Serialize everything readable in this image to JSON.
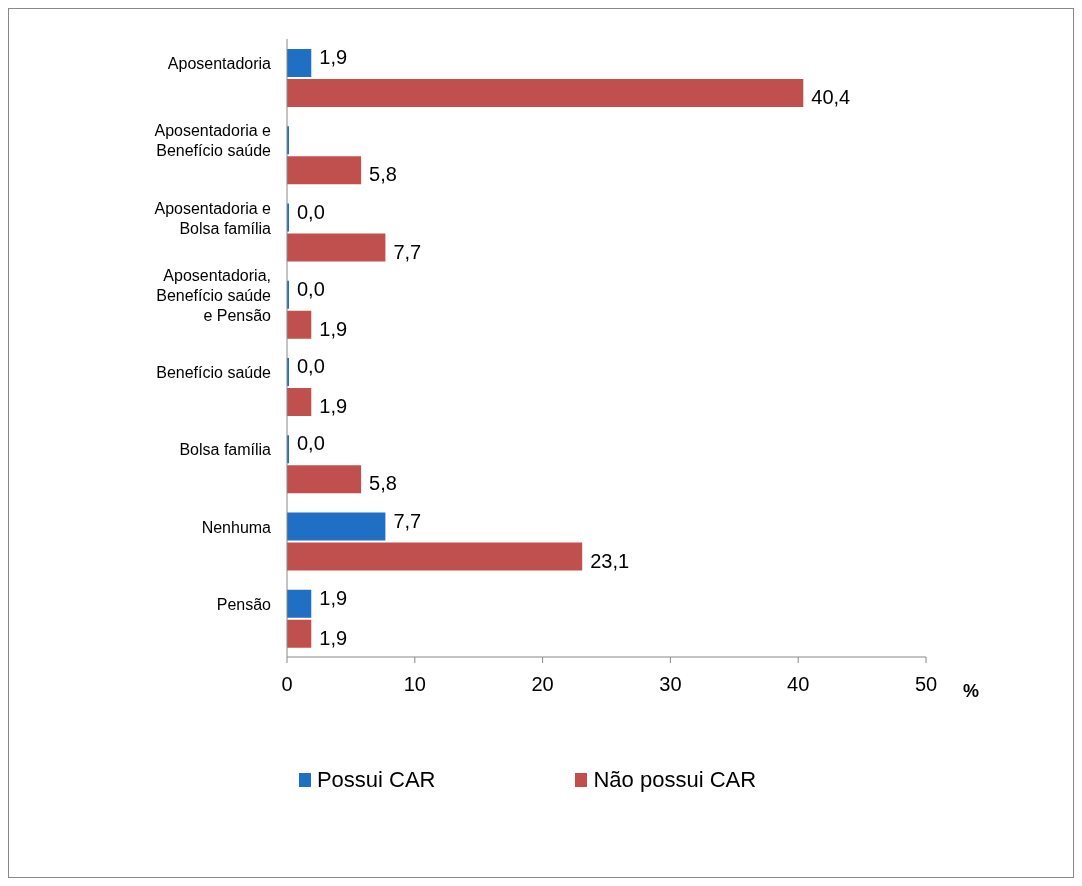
{
  "chart_data": {
    "type": "bar",
    "orientation": "horizontal",
    "xlabel": "%",
    "categories": [
      "Aposentadoria",
      "Aposentadoria e Benefício saúde",
      "Aposentadoria e Bolsa família",
      "Aposentadoria, Benefício saúde e Pensão",
      "Benefício saúde",
      "Bolsa família",
      "Nenhuma",
      "Pensão"
    ],
    "series": [
      {
        "name": "Possui CAR",
        "color": "#1f6fc5",
        "values": [
          1.9,
          0,
          0,
          0,
          0,
          0,
          7.7,
          1.9
        ],
        "value_labels": [
          "1,9",
          null,
          "0,0",
          "0,0",
          "0,0",
          "0,0",
          "7,7",
          "1,9"
        ]
      },
      {
        "name": "Não possui CAR",
        "color": "#c0504d",
        "values": [
          40.4,
          5.8,
          7.7,
          1.9,
          1.9,
          5.8,
          23.1,
          1.9
        ],
        "value_labels": [
          "40,4",
          "5,8",
          "7,7",
          "1,9",
          "1,9",
          "5,8",
          "23,1",
          "1,9"
        ]
      }
    ],
    "xlim": [
      0,
      50
    ],
    "xticks": [
      0,
      10,
      20,
      30,
      40,
      50
    ],
    "legend": "bottom"
  }
}
